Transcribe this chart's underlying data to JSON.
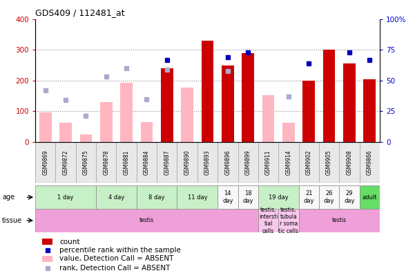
{
  "title": "GDS409 / 112481_at",
  "samples": [
    "GSM9869",
    "GSM9872",
    "GSM9875",
    "GSM9878",
    "GSM9881",
    "GSM9884",
    "GSM9887",
    "GSM9890",
    "GSM9893",
    "GSM9896",
    "GSM9899",
    "GSM9911",
    "GSM9914",
    "GSM9902",
    "GSM9905",
    "GSM9908",
    "GSM9866"
  ],
  "count_values": [
    null,
    null,
    null,
    null,
    null,
    null,
    240,
    null,
    330,
    250,
    290,
    null,
    null,
    200,
    300,
    255,
    205
  ],
  "count_pink": [
    97,
    63,
    25,
    130,
    193,
    65,
    null,
    178,
    null,
    null,
    null,
    153,
    63,
    null,
    null,
    null,
    null
  ],
  "percentile_blue_pct": [
    null,
    null,
    null,
    null,
    null,
    null,
    67,
    null,
    null,
    69,
    73,
    null,
    null,
    64,
    null,
    73,
    67
  ],
  "percentile_pink_pct": [
    42,
    34,
    21,
    53,
    60,
    35,
    59,
    null,
    null,
    58,
    null,
    null,
    37,
    null,
    null,
    null,
    null
  ],
  "ylim_left": [
    0,
    400
  ],
  "ylim_right": [
    0,
    100
  ],
  "yticks_left": [
    0,
    100,
    200,
    300,
    400
  ],
  "yticks_right": [
    0,
    25,
    50,
    75,
    100
  ],
  "ytick_labels_right": [
    "0",
    "25",
    "50",
    "75",
    "100%"
  ],
  "age_groups": [
    {
      "label": "1 day",
      "start": 0,
      "end": 3,
      "color": "#c8f0c8"
    },
    {
      "label": "4 day",
      "start": 3,
      "end": 5,
      "color": "#c8f0c8"
    },
    {
      "label": "8 day",
      "start": 5,
      "end": 7,
      "color": "#c8f0c8"
    },
    {
      "label": "11 day",
      "start": 7,
      "end": 9,
      "color": "#c8f0c8"
    },
    {
      "label": "14\nday",
      "start": 9,
      "end": 10,
      "color": "#f8f8f8"
    },
    {
      "label": "18\nday",
      "start": 10,
      "end": 11,
      "color": "#f8f8f8"
    },
    {
      "label": "19 day",
      "start": 11,
      "end": 13,
      "color": "#c8f0c8"
    },
    {
      "label": "21\nday",
      "start": 13,
      "end": 14,
      "color": "#f8f8f8"
    },
    {
      "label": "26\nday",
      "start": 14,
      "end": 15,
      "color": "#f8f8f8"
    },
    {
      "label": "29\nday",
      "start": 15,
      "end": 16,
      "color": "#f8f8f8"
    },
    {
      "label": "adult",
      "start": 16,
      "end": 17,
      "color": "#66dd66"
    }
  ],
  "tissue_groups": [
    {
      "label": "testis",
      "start": 0,
      "end": 11,
      "color": "#f0a0d8"
    },
    {
      "label": "testis,\nintersti\ntial\ncells",
      "start": 11,
      "end": 12,
      "color": "#f8c8ec"
    },
    {
      "label": "testis,\ntubula\nr soma\ntic cells",
      "start": 12,
      "end": 13,
      "color": "#f8c8ec"
    },
    {
      "label": "testis",
      "start": 13,
      "end": 17,
      "color": "#f0a0d8"
    }
  ],
  "bar_color_red": "#cc0000",
  "bar_color_pink": "#ffb6c1",
  "dot_color_blue": "#0000bb",
  "dot_color_light_blue": "#aaaacc",
  "grid_color": "#888888",
  "axis_bg": "#ffffff",
  "label_color_left": "#cc0000",
  "label_color_right": "#0000cc",
  "sample_bg": "#cccccc"
}
